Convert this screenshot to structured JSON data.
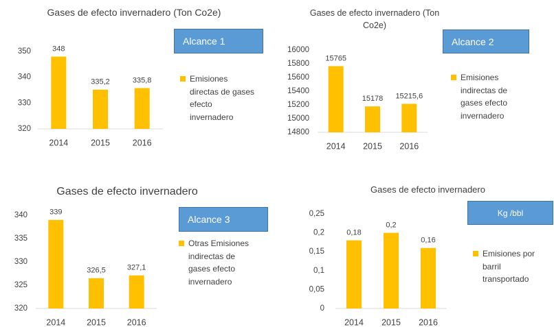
{
  "chart_data": [
    {
      "type": "bar",
      "title": "Gases de efecto invernadero (Ton Co2e)",
      "annotation": "Alcance 1",
      "legend": "Emisiones directas de gases efecto invernadero",
      "color": "#ffc000",
      "categories": [
        "2014",
        "2015",
        "2016"
      ],
      "values": [
        348,
        335.2,
        335.8
      ],
      "value_labels": [
        "348",
        "335,2",
        "335,8"
      ],
      "ylim": [
        320,
        350
      ],
      "yticks": [
        320,
        330,
        340,
        350
      ]
    },
    {
      "type": "bar",
      "title": "Gases de efecto invernadero (Ton Co2e)",
      "annotation": "Alcance 2",
      "legend": "Emisiones indirectas de gases efecto invernadero",
      "color": "#ffc000",
      "categories": [
        "2014",
        "2015",
        "2016"
      ],
      "values": [
        15765,
        15178,
        15215.6
      ],
      "value_labels": [
        "15765",
        "15178",
        "15215,6"
      ],
      "ylim": [
        14800,
        16000
      ],
      "yticks": [
        14800,
        15000,
        15200,
        15400,
        15600,
        15800,
        16000
      ]
    },
    {
      "type": "bar",
      "title": "Gases de efecto invernadero",
      "annotation": "Alcance 3",
      "legend": "Otras Emisiones indirectas de gases efecto invernadero",
      "color": "#ffc000",
      "categories": [
        "2014",
        "2015",
        "2016"
      ],
      "values": [
        339,
        326.5,
        327.1
      ],
      "value_labels": [
        "339",
        "326,5",
        "327,1"
      ],
      "ylim": [
        320,
        340
      ],
      "yticks": [
        320,
        325,
        330,
        335,
        340
      ]
    },
    {
      "type": "bar",
      "title": "Gases de efecto invernadero",
      "annotation": "Kg /bbl",
      "legend": "Emisiones por barril transportado",
      "color": "#ffc000",
      "categories": [
        "2014",
        "2015",
        "2016"
      ],
      "values": [
        0.18,
        0.2,
        0.16
      ],
      "value_labels": [
        "0,18",
        "0,2",
        "0,16"
      ],
      "ylim": [
        0,
        0.25
      ],
      "yticks": [
        0,
        {
          "value": 0.05,
          "label": "0,05"
        },
        {
          "value": 0.1,
          "label": "0,1"
        },
        {
          "value": 0.15,
          "label": "0,15"
        },
        {
          "value": 0.2,
          "label": "0,2"
        },
        {
          "value": 0.25,
          "label": "0,25"
        }
      ]
    }
  ]
}
